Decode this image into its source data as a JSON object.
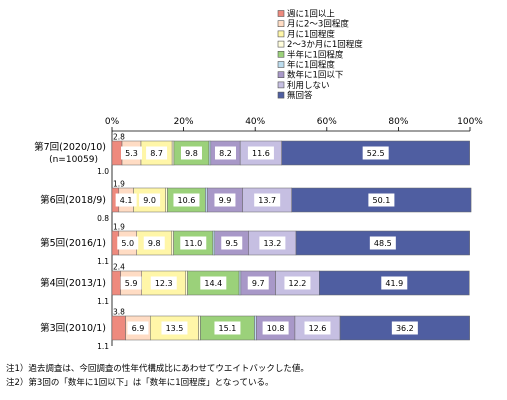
{
  "chart_data": {
    "type": "bar",
    "orientation": "horizontal",
    "stacked": true,
    "xlim": [
      0,
      100
    ],
    "x_ticks": [
      "0%",
      "20%",
      "40%",
      "60%",
      "80%",
      "100%"
    ],
    "grid": false,
    "legend_position": "top-right",
    "categories": [
      {
        "label": "第7回(2020/10)",
        "sublabel": "(n=10059)"
      },
      {
        "label": "第6回(2018/9)",
        "sublabel": ""
      },
      {
        "label": "第5回(2016/1)",
        "sublabel": ""
      },
      {
        "label": "第4回(2013/1)",
        "sublabel": ""
      },
      {
        "label": "第3回(2010/1)",
        "sublabel": ""
      }
    ],
    "series": [
      {
        "name": "週に1回以上",
        "color": "#ee8a7e",
        "values": [
          2.8,
          1.9,
          1.9,
          2.4,
          3.8
        ]
      },
      {
        "name": "月に2〜3回程度",
        "color": "#ffdcc4",
        "values": [
          5.3,
          4.1,
          5.0,
          5.9,
          6.9
        ]
      },
      {
        "name": "月に1回程度",
        "color": "#fff6a8",
        "values": [
          8.7,
          9.0,
          9.8,
          12.3,
          13.5
        ]
      },
      {
        "name": "2〜3か月に1回程度",
        "color": "#fffddc",
        "values": [
          0.5,
          0.5,
          0.5,
          0.5,
          0.5
        ]
      },
      {
        "name": "半年に1回程度",
        "color": "#9bd17a",
        "values": [
          9.8,
          10.6,
          11.0,
          14.4,
          15.1
        ]
      },
      {
        "name": "年に1回程度",
        "color": "#bcdcee",
        "values": [
          0.5,
          0.5,
          0.5,
          0.5,
          0.5
        ]
      },
      {
        "name": "数年に1回以下",
        "color": "#a898c8",
        "values": [
          8.2,
          9.9,
          9.5,
          9.7,
          10.8
        ]
      },
      {
        "name": "利用しない",
        "color": "#c6bfe2",
        "values": [
          11.6,
          13.7,
          13.2,
          12.2,
          12.6
        ]
      },
      {
        "name": "無回答",
        "color": "#4f5ea1",
        "values": [
          52.5,
          50.1,
          48.5,
          41.9,
          36.2
        ]
      }
    ],
    "data_labels": [
      [
        "2.8",
        "5.3",
        "8.7",
        "9.8",
        "8.2",
        "11.6",
        "52.5"
      ],
      [
        "1.9",
        "4.1",
        "9.0",
        "10.6",
        "9.9",
        "13.7",
        "50.1"
      ],
      [
        "1.9",
        "5.0",
        "9.8",
        "11.0",
        "9.5",
        "13.2",
        "48.5"
      ],
      [
        "2.4",
        "5.9",
        "12.3",
        "14.4",
        "9.7",
        "12.2",
        "41.9"
      ],
      [
        "3.8",
        "6.9",
        "13.5",
        "15.1",
        "10.8",
        "12.6",
        "36.2"
      ]
    ],
    "no_answer_labels": [
      "1.0",
      "0.8",
      "1.1",
      "1.1",
      "1.1"
    ]
  },
  "notes": [
    "注1）過去調査は、今回調査の性年代構成比にあわせてウエイトバックした値。",
    "注2）第3回の「数年に1回以下」は「数年に1回程度」となっている。"
  ]
}
